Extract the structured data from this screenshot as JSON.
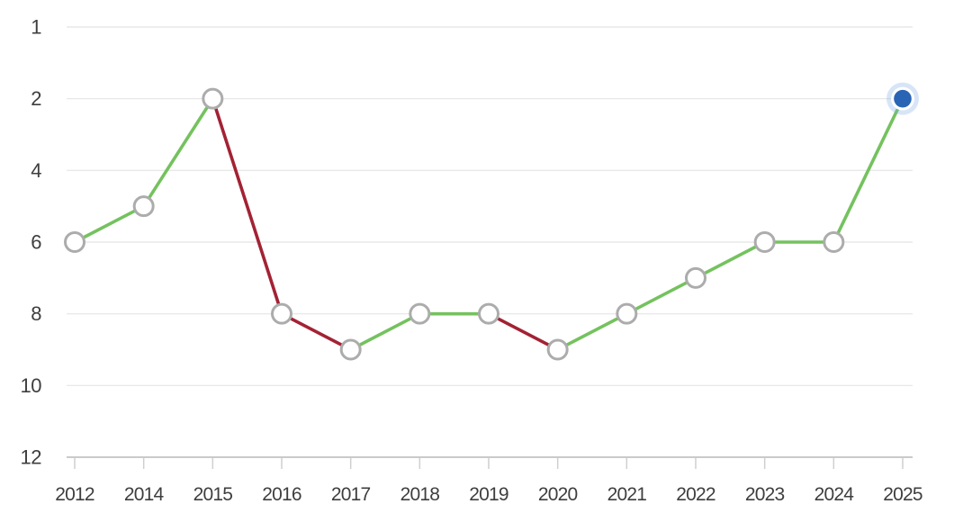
{
  "chart_data": {
    "type": "line",
    "description": "Yearly ranking history line chart, inverted rank axis (1 best at top)",
    "categories": [
      "2012",
      "2014",
      "2015",
      "2016",
      "2017",
      "2018",
      "2019",
      "2020",
      "2021",
      "2022",
      "2023",
      "2024",
      "2025"
    ],
    "values": [
      6,
      5,
      2,
      8,
      9,
      8,
      8,
      9,
      8,
      7,
      6,
      6,
      2
    ],
    "segment_trends": [
      "up",
      "up",
      "down",
      "down",
      "up",
      "flat",
      "down",
      "up",
      "up",
      "up",
      "flat",
      "up"
    ],
    "y_axis": {
      "ticks": [
        1,
        2,
        4,
        6,
        8,
        10,
        12
      ],
      "inverted": true,
      "grid": true
    },
    "x_axis": {
      "labels": [
        "2012",
        "2014",
        "2015",
        "2016",
        "2017",
        "2018",
        "2019",
        "2020",
        "2021",
        "2022",
        "2023",
        "2024",
        "2025"
      ]
    },
    "legend": {
      "visible": false
    },
    "current_point": {
      "category": "2025",
      "value": 2
    },
    "colors": {
      "improve_line": "#74c25e",
      "decline_line": "#a32234",
      "marker_fill": "#ffffff",
      "marker_stroke": "#acacac",
      "current_fill": "#2a64b4",
      "current_ring": "#ffffff",
      "current_glow": "rgba(121,170,227,0.30)",
      "gridline": "#e4e4e4",
      "axis_line": "#b8b8b8",
      "axis_tick": "#cfcfcf",
      "label_text": "#3e3e3e"
    }
  }
}
